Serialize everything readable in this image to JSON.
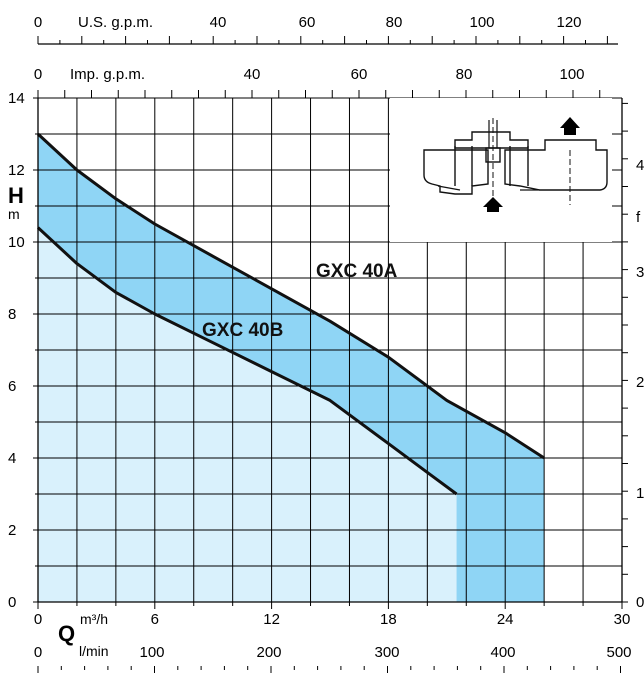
{
  "chart_data": {
    "type": "area",
    "title": "",
    "colors": {
      "band": "#8fd5f5",
      "under": "#d9f1fc",
      "curve": "#111111"
    },
    "grid": true,
    "y_left": {
      "symbol": "H",
      "unit": "m",
      "range": [
        0,
        14
      ],
      "ticks": [
        0,
        2,
        4,
        6,
        8,
        10,
        12,
        14
      ]
    },
    "y_right": {
      "visible_labels": [
        "4",
        "f",
        "3",
        "2",
        "1",
        "0"
      ]
    },
    "x_m3h": {
      "unit": "m³/h",
      "range": [
        0,
        30
      ],
      "ticks": [
        0,
        6,
        12,
        18,
        24,
        30
      ]
    },
    "x_lmin": {
      "symbol": "Q",
      "unit": "l/min",
      "ticks": [
        "0",
        "100",
        "200",
        "300",
        "400",
        "500"
      ]
    },
    "x_us_gpm": {
      "label": "U.S. g.p.m.",
      "ticks": [
        "0",
        "40",
        "60",
        "80",
        "100",
        "120"
      ]
    },
    "x_imp_gpm": {
      "label": "Imp. g.p.m.",
      "ticks": [
        "0",
        "40",
        "60",
        "80",
        "100"
      ]
    },
    "series": [
      {
        "name": "GXC 40A",
        "x": [
          0,
          2,
          4,
          6,
          9,
          12,
          15,
          18,
          21,
          24,
          26
        ],
        "y": [
          13.0,
          12.0,
          11.2,
          10.5,
          9.6,
          8.7,
          7.8,
          6.8,
          5.6,
          4.7,
          4.0
        ]
      },
      {
        "name": "GXC 40B",
        "x": [
          0,
          2,
          4,
          6,
          9,
          12,
          15,
          18,
          20,
          21.5
        ],
        "y": [
          10.4,
          9.4,
          8.6,
          8.0,
          7.2,
          6.4,
          5.6,
          4.4,
          3.6,
          3.0
        ]
      }
    ]
  }
}
